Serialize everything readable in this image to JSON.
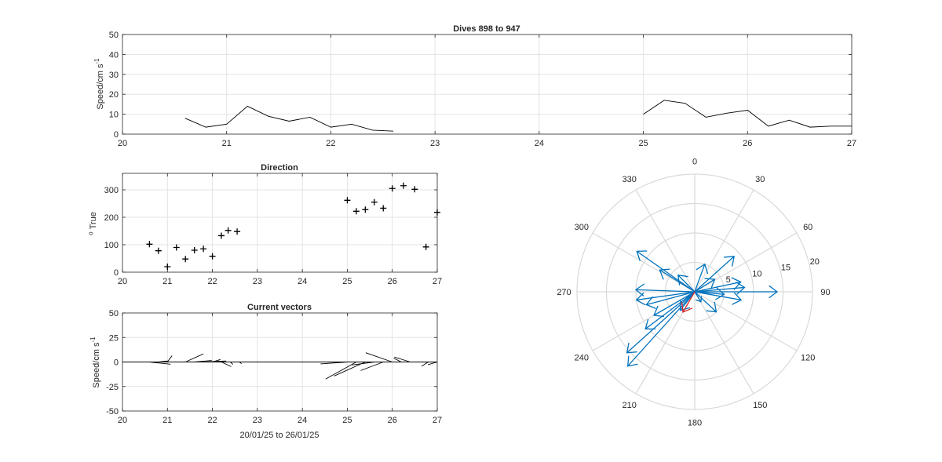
{
  "figure_colors": {
    "axis": "#262626",
    "grid": "#e3e3e3",
    "line": "#000000",
    "arrow": "#0072BD",
    "mean_arrow": "#D62728",
    "polar_grid": "#d9d9d9"
  },
  "chart_data": [
    {
      "type": "line",
      "title": "Dives 898 to 947",
      "ylabel": "Speed/cm s",
      "ylabel_exp": "-1",
      "xlim": [
        20,
        27
      ],
      "ylim": [
        0,
        50
      ],
      "xticks": [
        20,
        21,
        22,
        23,
        24,
        25,
        26,
        27
      ],
      "yticks": [
        0,
        10,
        20,
        30,
        40,
        50
      ],
      "grid": true,
      "series": [
        {
          "x": [
            20.6,
            20.8,
            21.0,
            21.2,
            21.4,
            21.6,
            21.8,
            22.0,
            22.2,
            22.4,
            22.6
          ],
          "y": [
            8,
            3.5,
            5,
            14,
            9,
            6.5,
            8.5,
            3.5,
            5,
            2,
            1.5
          ]
        },
        {
          "x": [
            25.0,
            25.2,
            25.4,
            25.6,
            25.8,
            26.0,
            26.2,
            26.4,
            26.6,
            26.8,
            27.0
          ],
          "y": [
            10,
            17,
            15.5,
            8.5,
            10.5,
            12,
            4,
            7,
            3.5,
            4,
            4
          ]
        }
      ]
    },
    {
      "type": "scatter",
      "title": "Direction",
      "ylabel": "True",
      "ylabel_sup": "o",
      "marker": "+",
      "xlim": [
        20,
        27
      ],
      "ylim": [
        0,
        360
      ],
      "xticks": [
        20,
        21,
        22,
        23,
        24,
        25,
        26,
        27
      ],
      "yticks": [
        0,
        100,
        200,
        300
      ],
      "grid": true,
      "x": [
        20.6,
        20.8,
        21.0,
        21.2,
        21.4,
        21.6,
        21.8,
        22.0,
        22.2,
        22.35,
        22.55,
        25.0,
        25.2,
        25.4,
        25.6,
        25.8,
        26.0,
        26.25,
        26.5,
        26.75,
        27.0
      ],
      "y": [
        102,
        78,
        20,
        90,
        48,
        80,
        85,
        58,
        133,
        152,
        148,
        262,
        222,
        228,
        255,
        233,
        305,
        315,
        302,
        92,
        218
      ]
    },
    {
      "type": "quiver",
      "title": "Current vectors",
      "ylabel": "Speed/cm s",
      "ylabel_exp": "-1",
      "xlabel": "20/01/25 to 26/01/25",
      "xlim": [
        20,
        27
      ],
      "ylim": [
        -50,
        50
      ],
      "xticks": [
        20,
        21,
        22,
        23,
        24,
        25,
        26,
        27
      ],
      "yticks": [
        -50,
        -25,
        0,
        25,
        50
      ],
      "grid": true,
      "x": [
        20.6,
        20.8,
        21.0,
        21.2,
        21.4,
        21.6,
        21.8,
        22.0,
        22.2,
        22.4,
        22.6,
        25.0,
        25.2,
        25.4,
        25.6,
        25.8,
        26.0,
        26.2,
        26.4,
        26.6,
        26.8,
        27.0
      ],
      "speed": [
        8,
        3.5,
        5,
        14,
        9,
        6.5,
        8.5,
        3.5,
        5,
        2,
        1.5,
        10,
        17,
        15.5,
        8.5,
        10.5,
        12,
        4,
        7,
        3.5,
        4,
        4
      ],
      "direction": [
        102,
        78,
        20,
        90,
        48,
        80,
        85,
        58,
        133,
        152,
        148,
        262,
        222,
        228,
        255,
        233,
        305,
        315,
        302,
        92,
        218,
        240
      ]
    },
    {
      "type": "compass",
      "rlim": [
        0,
        20
      ],
      "rticks": [
        5,
        10,
        15,
        20
      ],
      "theta_ticks": [
        0,
        30,
        60,
        90,
        120,
        150,
        180,
        210,
        240,
        270,
        300,
        330
      ],
      "vectors": [
        {
          "direction": 90,
          "speed": 14
        },
        {
          "direction": 78,
          "speed": 8
        },
        {
          "direction": 85,
          "speed": 8.5
        },
        {
          "direction": 100,
          "speed": 8
        },
        {
          "direction": 48,
          "speed": 9
        },
        {
          "direction": 58,
          "speed": 4
        },
        {
          "direction": 20,
          "speed": 5
        },
        {
          "direction": 95,
          "speed": 5
        },
        {
          "direction": 133,
          "speed": 5
        },
        {
          "direction": 148,
          "speed": 2
        },
        {
          "direction": 262,
          "speed": 10
        },
        {
          "direction": 222,
          "speed": 17
        },
        {
          "direction": 228,
          "speed": 15.5
        },
        {
          "direction": 255,
          "speed": 8.5
        },
        {
          "direction": 233,
          "speed": 10.5
        },
        {
          "direction": 305,
          "speed": 12
        },
        {
          "direction": 315,
          "speed": 4
        },
        {
          "direction": 302,
          "speed": 7
        },
        {
          "direction": 272,
          "speed": 10
        },
        {
          "direction": 218,
          "speed": 4
        },
        {
          "direction": 240,
          "speed": 8
        }
      ],
      "mean_vector": {
        "direction": 210,
        "speed": 4
      }
    }
  ]
}
